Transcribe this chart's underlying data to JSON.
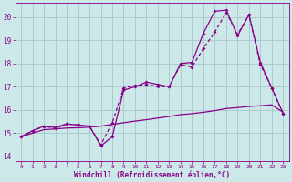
{
  "background_color": "#cce8e8",
  "grid_color": "#aacccc",
  "line_color": "#880088",
  "xlim": [
    -0.5,
    23.5
  ],
  "ylim": [
    13.8,
    20.6
  ],
  "yticks": [
    14,
    15,
    16,
    17,
    18,
    19,
    20
  ],
  "xticks": [
    0,
    1,
    2,
    3,
    4,
    5,
    6,
    7,
    8,
    9,
    10,
    11,
    12,
    13,
    14,
    15,
    16,
    17,
    18,
    19,
    20,
    21,
    22,
    23
  ],
  "xlabel": "Windchill (Refroidissement éolien,°C)",
  "series1_x": [
    0,
    1,
    2,
    3,
    4,
    5,
    6,
    7,
    8,
    9,
    10,
    11,
    12,
    13,
    14,
    15,
    16,
    17,
    18,
    19,
    20,
    21,
    22,
    23
  ],
  "series1_y": [
    14.85,
    15.1,
    15.3,
    15.2,
    15.4,
    15.35,
    15.3,
    14.5,
    15.45,
    16.95,
    17.05,
    17.1,
    17.0,
    17.0,
    17.95,
    17.85,
    18.65,
    19.35,
    20.2,
    19.25,
    20.1,
    17.95,
    16.95,
    15.85
  ],
  "series2_x": [
    0,
    1,
    2,
    3,
    4,
    5,
    6,
    7,
    8,
    9,
    10,
    11,
    12,
    13,
    14,
    15,
    16,
    17,
    18,
    19,
    20,
    21,
    22,
    23
  ],
  "series2_y": [
    14.85,
    15.1,
    15.3,
    15.25,
    15.4,
    15.35,
    15.3,
    14.45,
    14.85,
    16.85,
    17.0,
    17.2,
    17.1,
    17.0,
    18.0,
    18.05,
    19.3,
    20.25,
    20.3,
    19.2,
    20.1,
    18.05,
    16.95,
    15.85
  ],
  "series3_x": [
    0,
    1,
    2,
    3,
    4,
    5,
    6,
    7,
    8,
    9,
    10,
    11,
    12,
    13,
    14,
    15,
    16,
    17,
    18,
    19,
    20,
    21,
    22,
    23
  ],
  "series3_y": [
    14.85,
    15.0,
    15.15,
    15.18,
    15.22,
    15.23,
    15.26,
    15.3,
    15.38,
    15.45,
    15.52,
    15.58,
    15.65,
    15.72,
    15.8,
    15.84,
    15.9,
    15.97,
    16.06,
    16.1,
    16.15,
    16.18,
    16.22,
    15.9
  ]
}
